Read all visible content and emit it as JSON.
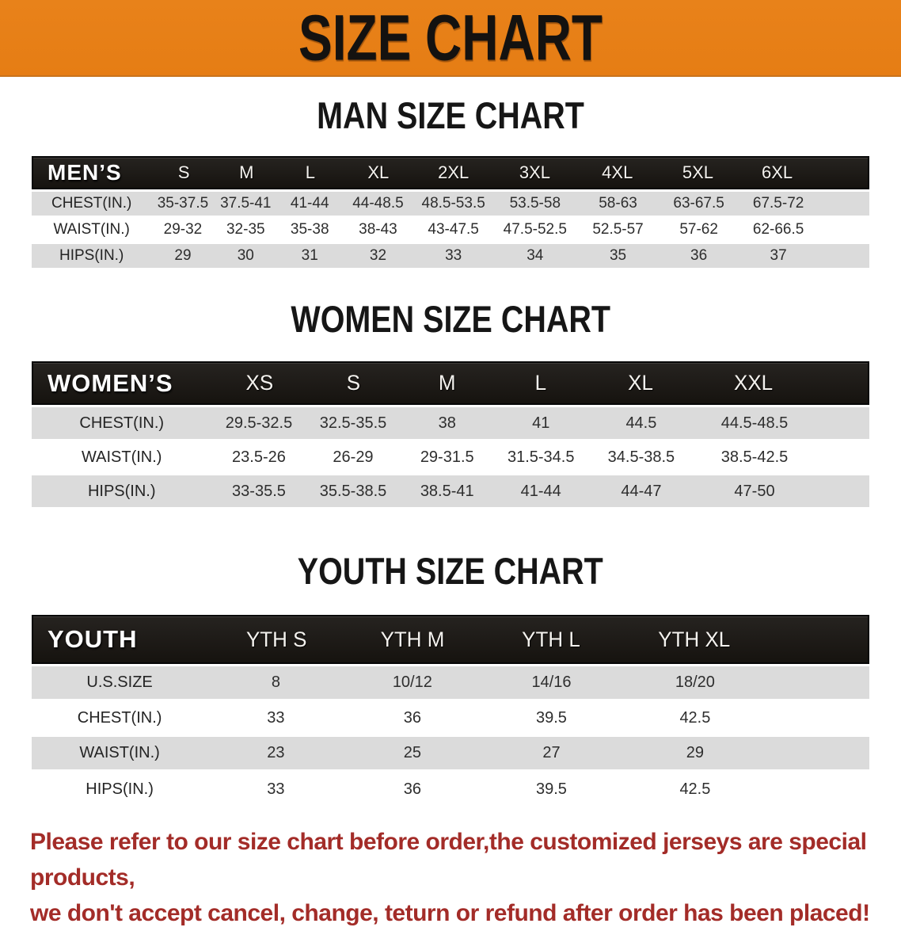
{
  "banner": {
    "title": "SIZE CHART",
    "bg_color": "#E8821A"
  },
  "colors": {
    "banner_orange": "#E8821A",
    "header_bar_black": "#1C1916",
    "row_gray": "#DBDBDB",
    "disclaimer_red": "#A32C28"
  },
  "sections": [
    {
      "title": "MAN SIZE CHART",
      "table": {
        "group_label": "MEN’S",
        "size_headers": [
          "S",
          "M",
          "L",
          "XL",
          "2XL",
          "3XL",
          "4XL",
          "5XL",
          "6XL"
        ],
        "rows": [
          {
            "label": "CHEST(IN.)",
            "values": [
              "35-37.5",
              "37.5-41",
              "41-44",
              "44-48.5",
              "48.5-53.5",
              "53.5-58",
              "58-63",
              "63-67.5",
              "67.5-72"
            ]
          },
          {
            "label": "WAIST(IN.)",
            "values": [
              "29-32",
              "32-35",
              "35-38",
              "38-43",
              "43-47.5",
              "47.5-52.5",
              "52.5-57",
              "57-62",
              "62-66.5"
            ]
          },
          {
            "label": "HIPS(IN.)",
            "values": [
              "29",
              "30",
              "31",
              "32",
              "33",
              "34",
              "35",
              "36",
              "37"
            ]
          }
        ]
      }
    },
    {
      "title": "WOMEN SIZE CHART",
      "table": {
        "group_label": "WOMEN’S",
        "size_headers": [
          "XS",
          "S",
          "M",
          "L",
          "XL",
          "XXL"
        ],
        "rows": [
          {
            "label": "CHEST(IN.)",
            "values": [
              "29.5-32.5",
              "32.5-35.5",
              "38",
              "41",
              "44.5",
              "44.5-48.5"
            ]
          },
          {
            "label": "WAIST(IN.)",
            "values": [
              "23.5-26",
              "26-29",
              "29-31.5",
              "31.5-34.5",
              "34.5-38.5",
              "38.5-42.5"
            ]
          },
          {
            "label": "HIPS(IN.)",
            "values": [
              "33-35.5",
              "35.5-38.5",
              "38.5-41",
              "41-44",
              "44-47",
              "47-50"
            ]
          }
        ]
      }
    },
    {
      "title": "YOUTH SIZE CHART",
      "table": {
        "group_label": "YOUTH",
        "size_headers": [
          "YTH S",
          "YTH M",
          "YTH L",
          "YTH XL"
        ],
        "rows": [
          {
            "label": "U.S.SIZE",
            "values": [
              "8",
              "10/12",
              "14/16",
              "18/20"
            ]
          },
          {
            "label": "CHEST(IN.)",
            "values": [
              "33",
              "36",
              "39.5",
              "42.5"
            ]
          },
          {
            "label": "WAIST(IN.)",
            "values": [
              "23",
              "25",
              "27",
              "29"
            ]
          },
          {
            "label": "HIPS(IN.)",
            "values": [
              "33",
              "36",
              "39.5",
              "42.5"
            ]
          }
        ]
      }
    }
  ],
  "disclaimer": {
    "line1": "Please refer to our size chart before order,the customized jerseys are special products,",
    "line2": "we don't accept cancel, change, teturn or refund after order has been placed!"
  }
}
